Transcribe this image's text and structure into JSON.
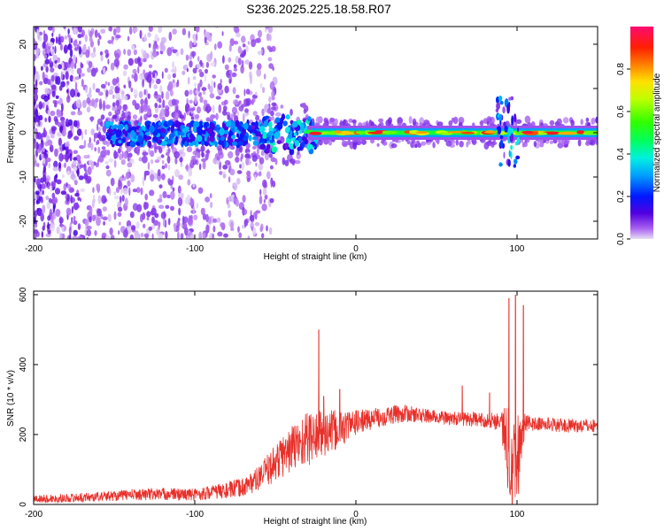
{
  "title": "S236.2025.225.18.58.R07",
  "chart_data": [
    {
      "type": "heatmap",
      "xlabel": "Height of straight line (km)",
      "ylabel": "Frequency (Hz)",
      "xlim": [
        -200,
        150
      ],
      "ylim": [
        -24,
        24
      ],
      "x_ticks": [
        "-200",
        "-100",
        "0",
        "100"
      ],
      "x_tick_values": [
        -200,
        -100,
        0,
        100
      ],
      "y_ticks": [
        "20",
        "10",
        "0",
        "-10",
        "-20"
      ],
      "y_tick_values": [
        20,
        10,
        0,
        -10,
        -20
      ],
      "colorbar": {
        "label": "Normalized spectral amplitude",
        "range": [
          0,
          1
        ],
        "ticks": [
          "0.0",
          "0.2",
          "0.4",
          "0.6",
          "0.8"
        ],
        "tick_values": [
          0,
          0.2,
          0.4,
          0.6,
          0.8
        ]
      },
      "features": {
        "diffuse_noise_x_range": [
          -200,
          -70
        ],
        "diffuse_noise_y_range": [
          -24,
          24
        ],
        "line_center_hz": 0,
        "line_start_km": -155,
        "strong_band_x_range": [
          -30,
          150
        ],
        "spike_near_km": 97
      }
    },
    {
      "type": "line",
      "xlabel": "Height of straight line (km)",
      "ylabel": "SNR (10 * v/v)",
      "xlim": [
        -200,
        150
      ],
      "ylim": [
        0,
        610
      ],
      "x_ticks": [
        "-200",
        "-100",
        "0",
        "100"
      ],
      "x_tick_values": [
        -200,
        -100,
        0,
        100
      ],
      "y_ticks": [
        "0",
        "200",
        "400",
        "600"
      ],
      "y_tick_values": [
        0,
        200,
        400,
        600
      ],
      "color": "#e8302a",
      "series": [
        {
          "name": "",
          "x": [
            -200,
            -180,
            -160,
            -140,
            -120,
            -100,
            -90,
            -80,
            -70,
            -60,
            -50,
            -40,
            -30,
            -20,
            -10,
            0,
            10,
            20,
            30,
            40,
            50,
            60,
            70,
            80,
            90,
            95,
            100,
            105,
            110,
            120,
            130,
            140,
            150
          ],
          "y": [
            15,
            18,
            22,
            28,
            30,
            28,
            35,
            40,
            50,
            75,
            120,
            160,
            190,
            200,
            215,
            235,
            245,
            255,
            260,
            255,
            250,
            245,
            245,
            240,
            240,
            150,
            130,
            235,
            230,
            230,
            225,
            225,
            225
          ],
          "noise_amplitude": [
            12,
            12,
            14,
            16,
            18,
            18,
            20,
            24,
            28,
            35,
            55,
            70,
            80,
            70,
            55,
            35,
            30,
            28,
            25,
            22,
            20,
            20,
            22,
            20,
            30,
            150,
            150,
            25,
            20,
            20,
            20,
            20,
            20
          ],
          "peaks": [
            {
              "x": -23,
              "y": 500
            },
            {
              "x": -20,
              "y": 310
            },
            {
              "x": -10,
              "y": 330
            },
            {
              "x": 66,
              "y": 340
            },
            {
              "x": 83,
              "y": 320
            },
            {
              "x": 95,
              "y": 590
            },
            {
              "x": 99,
              "y": 600
            },
            {
              "x": 104,
              "y": 570
            }
          ]
        }
      ]
    }
  ]
}
